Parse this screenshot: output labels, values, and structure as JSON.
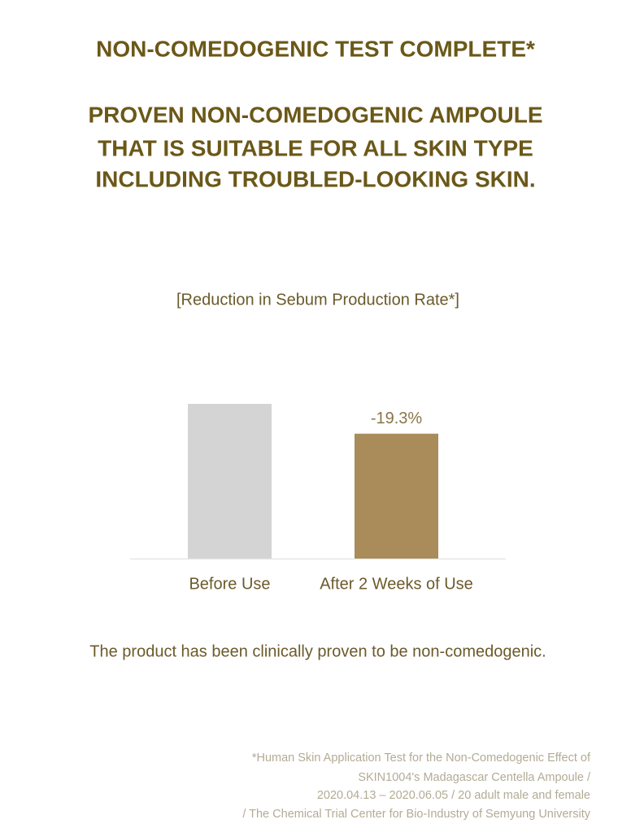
{
  "header": {
    "title": "NON-COMEDOGENIC TEST COMPLETE*",
    "subtitle_lines": [
      "PROVEN NON-COMEDOGENIC AMPOULE",
      "THAT IS SUITABLE FOR ALL SKIN TYPE",
      "INCLUDING TROUBLED-LOOKING SKIN."
    ]
  },
  "chart_data": {
    "type": "bar",
    "title": "[Reduction in Sebum Production Rate*]",
    "categories": [
      "Before Use",
      "After 2 Weeks of Use"
    ],
    "values": [
      100,
      80.7
    ],
    "colors": [
      "#d4d4d4",
      "#a98c59"
    ],
    "ylim": [
      0,
      100
    ],
    "annotations": [
      {
        "category": 1,
        "text": "-19.3%"
      }
    ]
  },
  "statement": "The product has been clinically proven to be non-comedogenic.",
  "footnote": [
    "*Human Skin Application Test for the Non-Comedogenic Effect of",
    "SKIN1004's Madagascar Centella Ampoule /",
    "2020.04.13 – 2020.06.05 / 20 adult male and female",
    "/ The Chemical Trial Center for Bio-Industry of Semyung University"
  ]
}
